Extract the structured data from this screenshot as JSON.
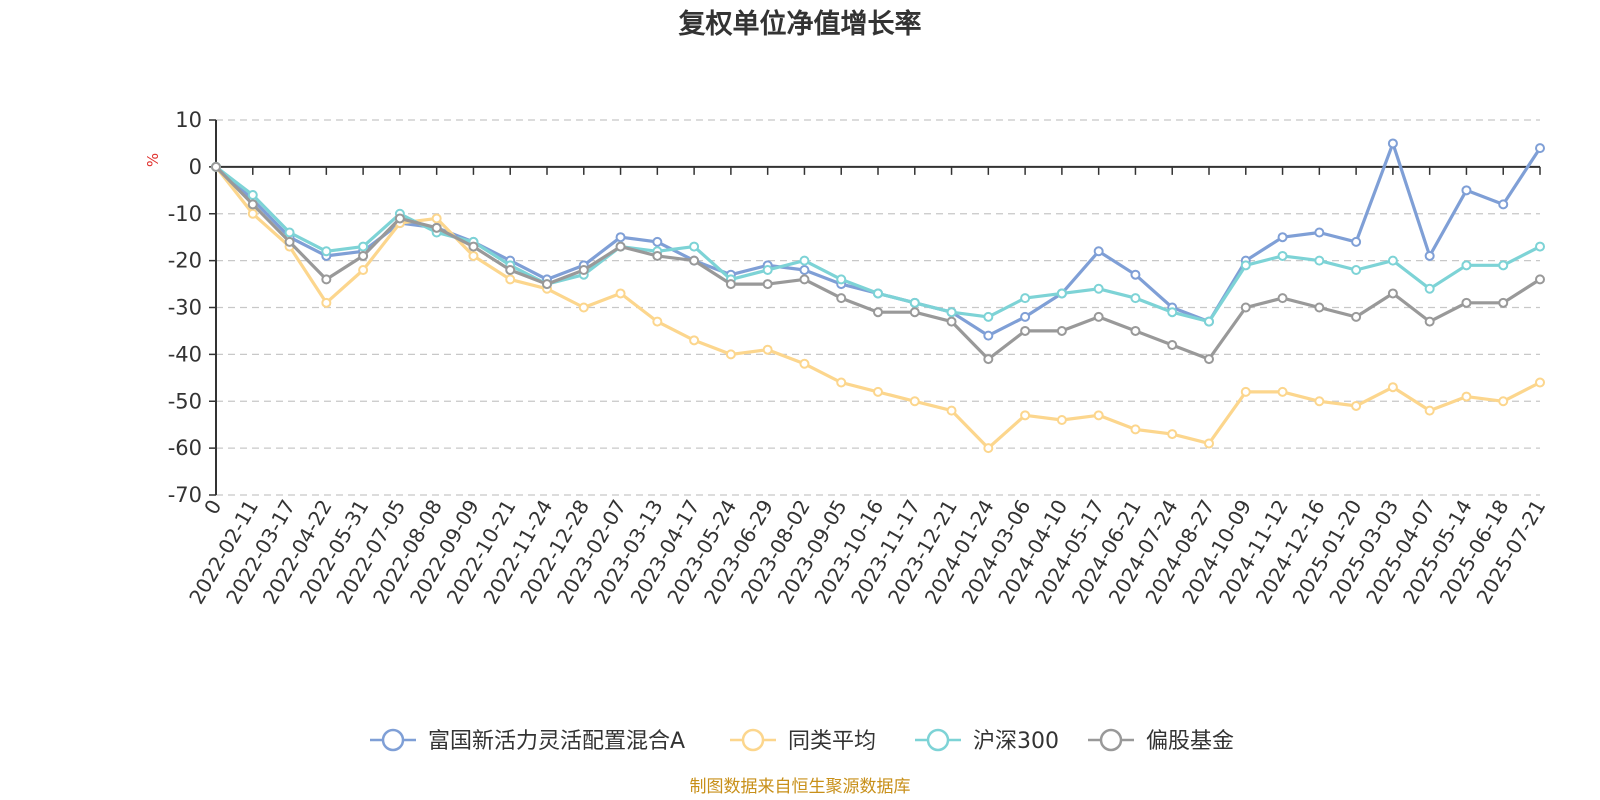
{
  "chart_data": {
    "type": "line",
    "title": "复权单位净值增长率",
    "ylabel": "%",
    "ylim": [
      -70,
      10
    ],
    "yticks": [
      10,
      0,
      -10,
      -20,
      -30,
      -40,
      -50,
      -60,
      -70
    ],
    "grid": true,
    "legend_position": "bottom-center",
    "source": "制图数据来自恒生聚源数据库",
    "x": [
      "0",
      "2022-02-11",
      "2022-03-17",
      "2022-04-22",
      "2022-05-31",
      "2022-07-05",
      "2022-08-08",
      "2022-09-09",
      "2022-10-21",
      "2022-11-24",
      "2022-12-28",
      "2023-02-07",
      "2023-03-13",
      "2023-04-17",
      "2023-05-24",
      "2023-06-29",
      "2023-08-02",
      "2023-09-05",
      "2023-10-16",
      "2023-11-17",
      "2023-12-21",
      "2024-01-24",
      "2024-03-06",
      "2024-04-10",
      "2024-05-17",
      "2024-06-21",
      "2024-07-24",
      "2024-08-27",
      "2024-10-09",
      "2024-11-12",
      "2024-12-16",
      "2025-01-20",
      "2025-03-03",
      "2025-04-07",
      "2025-05-14",
      "2025-06-18",
      "2025-07-21"
    ],
    "series": [
      {
        "name": "富国新活力灵活配置混合A",
        "color": "#7f9fd6",
        "values": [
          0,
          -7,
          -15,
          -19,
          -18,
          -12,
          -13,
          -16,
          -20,
          -24,
          -21,
          -15,
          -16,
          -20,
          -23,
          -21,
          -22,
          -25,
          -27,
          -29,
          -31,
          -36,
          -32,
          -27,
          -18,
          -23,
          -30,
          -33,
          -20,
          -15,
          -14,
          -16,
          5,
          -19,
          -5,
          -8,
          4
        ]
      },
      {
        "name": "同类平均",
        "color": "#fcd68d",
        "values": [
          0,
          -10,
          -17,
          -29,
          -22,
          -12,
          -11,
          -19,
          -24,
          -26,
          -30,
          -27,
          -33,
          -37,
          -40,
          -39,
          -42,
          -46,
          -48,
          -50,
          -52,
          -60,
          -53,
          -54,
          -53,
          -56,
          -57,
          -59,
          -48,
          -48,
          -50,
          -51,
          -47,
          -52,
          -49,
          -50,
          -46
        ]
      },
      {
        "name": "沪深300",
        "color": "#7dd3d6",
        "values": [
          0,
          -6,
          -14,
          -18,
          -17,
          -10,
          -14,
          -16,
          -21,
          -25,
          -23,
          -17,
          -18,
          -17,
          -24,
          -22,
          -20,
          -24,
          -27,
          -29,
          -31,
          -32,
          -28,
          -27,
          -26,
          -28,
          -31,
          -33,
          -21,
          -19,
          -20,
          -22,
          -20,
          -26,
          -21,
          -21,
          -17
        ]
      },
      {
        "name": "偏股基金",
        "color": "#999999",
        "values": [
          0,
          -8,
          -16,
          -24,
          -19,
          -11,
          -13,
          -17,
          -22,
          -25,
          -22,
          -17,
          -19,
          -20,
          -25,
          -25,
          -24,
          -28,
          -31,
          -31,
          -33,
          -41,
          -35,
          -35,
          -32,
          -35,
          -38,
          -41,
          -30,
          -28,
          -30,
          -32,
          -27,
          -33,
          -29,
          -29,
          -24
        ]
      }
    ]
  }
}
